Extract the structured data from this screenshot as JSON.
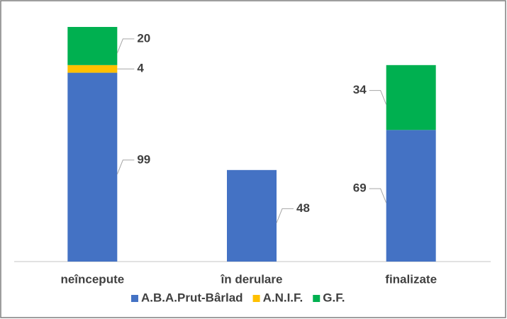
{
  "chart_data": {
    "type": "bar",
    "stacked": true,
    "categories": [
      "neîncepute",
      "în derulare",
      "finalizate"
    ],
    "series": [
      {
        "name": "A.B.A.Prut-Bârlad",
        "color": "#4472c4",
        "values": [
          99,
          48,
          69
        ]
      },
      {
        "name": "A.N.I.F.",
        "color": "#ffc000",
        "values": [
          4,
          null,
          null
        ]
      },
      {
        "name": "G.F.",
        "color": "#00b050",
        "values": [
          20,
          null,
          34
        ]
      }
    ],
    "legend": "bottom"
  }
}
